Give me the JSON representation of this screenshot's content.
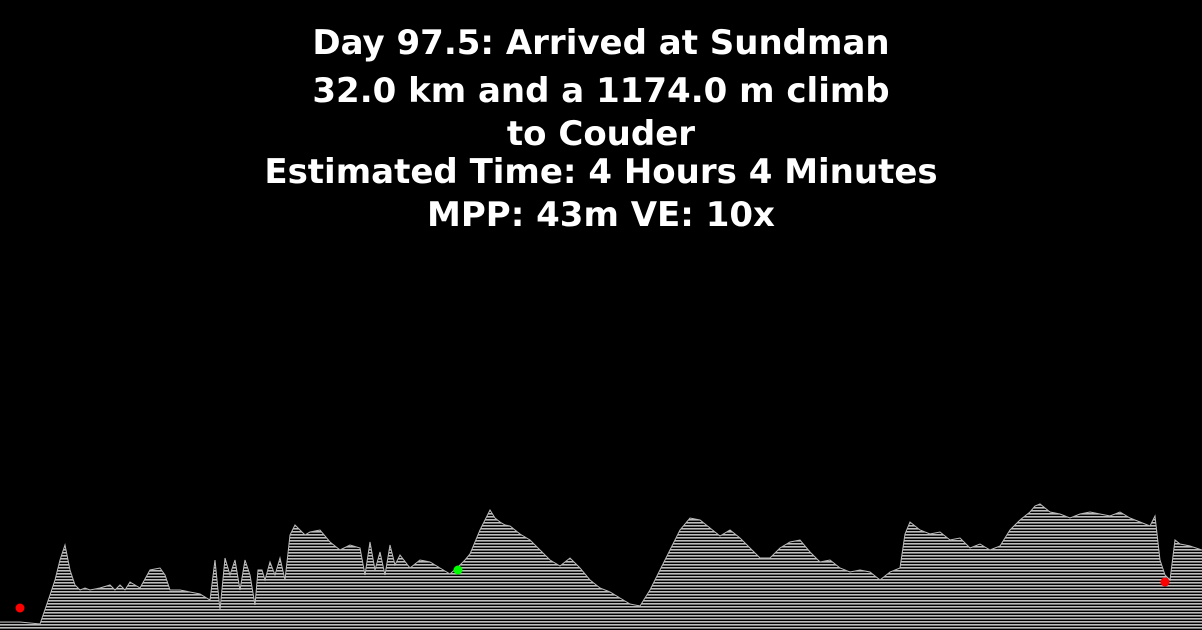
{
  "header": {
    "title": "Day 97.5: Arrived at Sundman",
    "climb_line": "32.0 km and a 1174.0 m climb",
    "destination_line": "to Couder",
    "estimated_time": "Estimated Time: 4 Hours 4 Minutes",
    "scale_line": "MPP: 43m VE: 10x"
  },
  "colors": {
    "background": "#000000",
    "text": "#ffffff",
    "terrain": "#bdbdbd",
    "start_marker": "#ff0000",
    "current_marker": "#00ff00",
    "end_marker": "#ff0000"
  },
  "chart_data": {
    "type": "area",
    "title": "",
    "xlabel": "",
    "ylabel": "",
    "grid": false,
    "legend": "none",
    "x": [
      0,
      20,
      40,
      50,
      55,
      60,
      65,
      70,
      75,
      80,
      85,
      90,
      100,
      110,
      115,
      120,
      125,
      130,
      135,
      140,
      150,
      160,
      165,
      170,
      180,
      190,
      200,
      210,
      215,
      220,
      225,
      230,
      235,
      240,
      245,
      250,
      255,
      258,
      262,
      265,
      270,
      275,
      280,
      285,
      290,
      295,
      300,
      305,
      310,
      320,
      330,
      340,
      350,
      360,
      365,
      370,
      375,
      380,
      385,
      390,
      395,
      400,
      410,
      420,
      430,
      440,
      450,
      460,
      465,
      470,
      480,
      490,
      495,
      500,
      505,
      510,
      520,
      530,
      540,
      550,
      560,
      570,
      580,
      590,
      600,
      610,
      620,
      630,
      640,
      650,
      660,
      670,
      680,
      690,
      700,
      710,
      720,
      730,
      740,
      750,
      760,
      770,
      780,
      790,
      800,
      810,
      820,
      830,
      840,
      850,
      860,
      870,
      880,
      890,
      900,
      905,
      910,
      920,
      930,
      940,
      950,
      960,
      970,
      980,
      990,
      1000,
      1010,
      1020,
      1030,
      1035,
      1040,
      1050,
      1060,
      1070,
      1080,
      1090,
      1100,
      1110,
      1120,
      1130,
      1140,
      1150,
      1155,
      1160,
      1165,
      1170,
      1175,
      1180,
      1190,
      1202
    ],
    "y": [
      8,
      8,
      6,
      35,
      50,
      70,
      85,
      60,
      45,
      40,
      42,
      40,
      42,
      45,
      40,
      45,
      40,
      48,
      45,
      42,
      60,
      62,
      55,
      40,
      40,
      38,
      36,
      30,
      70,
      20,
      72,
      55,
      70,
      40,
      70,
      55,
      25,
      60,
      60,
      50,
      68,
      55,
      72,
      50,
      95,
      105,
      100,
      95,
      98,
      100,
      88,
      80,
      85,
      82,
      55,
      88,
      60,
      78,
      55,
      85,
      65,
      75,
      62,
      70,
      68,
      62,
      56,
      65,
      70,
      76,
      100,
      120,
      112,
      108,
      105,
      104,
      96,
      90,
      80,
      70,
      64,
      72,
      62,
      50,
      42,
      38,
      32,
      26,
      24,
      40,
      60,
      80,
      100,
      112,
      110,
      102,
      94,
      100,
      92,
      82,
      72,
      72,
      82,
      88,
      90,
      78,
      68,
      70,
      62,
      58,
      60,
      58,
      50,
      58,
      62,
      96,
      108,
      100,
      96,
      98,
      90,
      92,
      82,
      86,
      80,
      84,
      100,
      110,
      118,
      124,
      126,
      118,
      116,
      112,
      116,
      118,
      116,
      114,
      118,
      112,
      108,
      104,
      114,
      70,
      55,
      50,
      90,
      86,
      84,
      80
    ],
    "markers": [
      {
        "name": "start",
        "x": 20,
        "y": 22,
        "color": "#ff0000"
      },
      {
        "name": "current",
        "x": 458,
        "y": 60,
        "color": "#00ff00"
      },
      {
        "name": "end",
        "x": 1165,
        "y": 48,
        "color": "#ff0000"
      }
    ]
  }
}
